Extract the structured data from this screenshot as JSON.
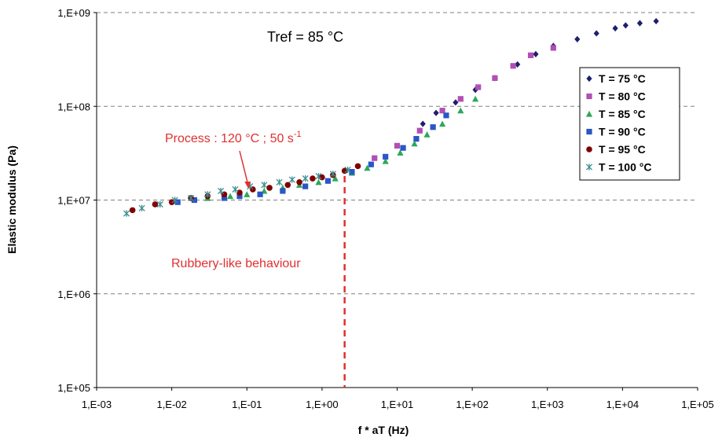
{
  "chart_data": {
    "type": "scatter",
    "x_scale": "log",
    "y_scale": "log",
    "xlabel": "f * aT (Hz)",
    "ylabel": "Elastic modulus (Pa)",
    "xlim": [
      0.001,
      100000
    ],
    "ylim": [
      100000,
      1000000000
    ],
    "x_tick_labels": [
      "1,E-03",
      "1,E-02",
      "1,E-01",
      "1,E+00",
      "1,E+01",
      "1,E+02",
      "1,E+03",
      "1,E+04",
      "1,E+05"
    ],
    "y_tick_labels": [
      "1,E+05",
      "1,E+06",
      "1,E+07",
      "1,E+08",
      "1,E+09"
    ],
    "grid": "horizontal dashed",
    "legend_position": "right",
    "series": [
      {
        "name": "T = 75 °C",
        "color": "#1f1f6e",
        "marker": "diamond",
        "x": [
          22,
          33,
          60,
          110,
          200,
          400,
          700,
          1200,
          2500,
          4500,
          8000,
          11000,
          17000,
          28000
        ],
        "y": [
          65000000,
          85000000,
          110000000,
          150000000,
          200000000,
          280000000,
          360000000,
          440000000,
          520000000,
          600000000,
          680000000,
          730000000,
          770000000,
          810000000
        ]
      },
      {
        "name": "T = 80 °C",
        "color": "#b04fb5",
        "marker": "square",
        "x": [
          5,
          10,
          20,
          40,
          70,
          120,
          200,
          350,
          600,
          1200
        ],
        "y": [
          28000000,
          38000000,
          55000000,
          90000000,
          120000000,
          160000000,
          200000000,
          270000000,
          350000000,
          420000000
        ],
        "x2": [],
        "y2": []
      },
      {
        "name": "T = 85 °C",
        "color": "#2ca85a",
        "marker": "triangle",
        "x": [
          0.03,
          0.06,
          0.1,
          0.17,
          0.3,
          0.5,
          0.9,
          1.5,
          2.5,
          4,
          7,
          11,
          17,
          25,
          40,
          70,
          110
        ],
        "y": [
          10500000,
          11000000,
          11500000,
          12500000,
          13500000,
          14500000,
          15500000,
          17000000,
          19500000,
          22000000,
          26000000,
          32000000,
          40000000,
          50000000,
          65000000,
          90000000,
          120000000
        ]
      },
      {
        "name": "T = 90 °C",
        "color": "#2a56c6",
        "marker": "square",
        "x": [
          0.012,
          0.02,
          0.05,
          0.08,
          0.15,
          0.3,
          0.6,
          1.2,
          2.5,
          4.5,
          7,
          12,
          18,
          30,
          45
        ],
        "y": [
          9500000,
          10000000,
          10500000,
          11000000,
          11500000,
          12500000,
          14000000,
          16000000,
          20000000,
          24000000,
          29000000,
          36000000,
          45000000,
          60000000,
          80000000
        ]
      },
      {
        "name": "T = 95 °C",
        "color": "#800000",
        "marker": "circle",
        "x": [
          0.003,
          0.006,
          0.01,
          0.018,
          0.03,
          0.05,
          0.08,
          0.12,
          0.2,
          0.35,
          0.5,
          0.75,
          1.0,
          1.4,
          2.0,
          3.0
        ],
        "y": [
          7800000,
          9000000,
          9500000,
          10500000,
          11000000,
          11500000,
          12000000,
          13000000,
          13500000,
          14500000,
          15500000,
          17000000,
          17500000,
          18500000,
          20500000,
          23000000
        ]
      },
      {
        "name": "T = 100 °C",
        "color": "#3d8f8f",
        "marker": "asterisk",
        "x": [
          0.0025,
          0.004,
          0.007,
          0.011,
          0.018,
          0.03,
          0.045,
          0.07,
          0.11,
          0.17,
          0.27,
          0.4,
          0.6,
          0.9,
          1.4,
          2.2
        ],
        "y": [
          7200000,
          8200000,
          9000000,
          10000000,
          10500000,
          11500000,
          12500000,
          13000000,
          14000000,
          14500000,
          15500000,
          16500000,
          17000000,
          18000000,
          19000000,
          21000000
        ]
      }
    ],
    "annotations": {
      "tref": "Tref = 85 °C",
      "process_text": "Process : 120 °C ; 50 s",
      "process_sup": "-1",
      "process_arrow_target": {
        "x": 0.1,
        "y": 12500000
      },
      "rubbery_text": "Rubbery-like behaviour",
      "dashed_vline_x": 2
    },
    "colors": {
      "annotation": "#e03030",
      "grid": "#808080"
    }
  }
}
